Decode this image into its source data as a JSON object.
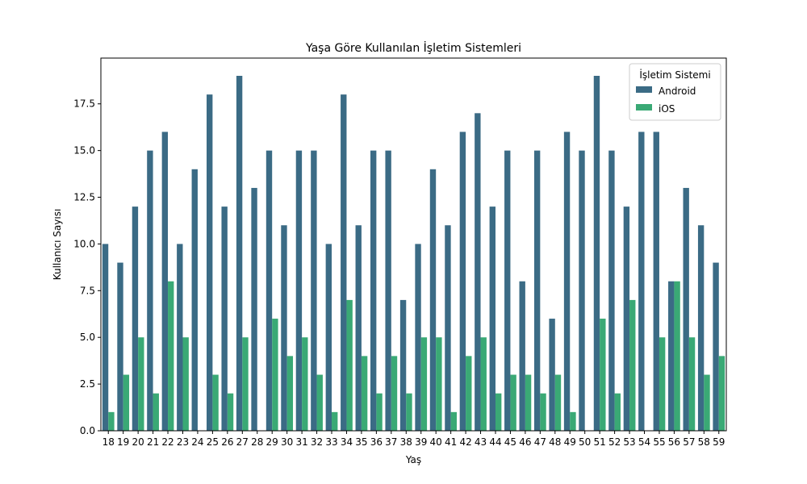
{
  "chart_data": {
    "type": "bar",
    "title": "Yaşa Göre Kullanılan İşletim Sistemleri",
    "xlabel": "Yaş",
    "ylabel": "Kullanıcı Sayısı",
    "ylim": [
      0,
      19.95
    ],
    "yticks": [
      "0.0",
      "2.5",
      "5.0",
      "7.5",
      "10.0",
      "12.5",
      "15.0",
      "17.5"
    ],
    "legend_title": "İşletim Sistemi",
    "legend_position": "upper right",
    "categories": [
      "18",
      "19",
      "20",
      "21",
      "22",
      "23",
      "24",
      "25",
      "26",
      "27",
      "28",
      "29",
      "30",
      "31",
      "32",
      "33",
      "34",
      "35",
      "36",
      "37",
      "38",
      "39",
      "40",
      "41",
      "42",
      "43",
      "44",
      "45",
      "46",
      "47",
      "48",
      "49",
      "50",
      "51",
      "52",
      "53",
      "54",
      "55",
      "56",
      "57",
      "58",
      "59"
    ],
    "series": [
      {
        "name": "Android",
        "color": "#3b6b85",
        "values": [
          10,
          9,
          12,
          15,
          16,
          10,
          14,
          18,
          12,
          19,
          13,
          15,
          11,
          15,
          15,
          10,
          18,
          11,
          15,
          15,
          7,
          10,
          14,
          11,
          16,
          17,
          12,
          15,
          8,
          15,
          6,
          16,
          15,
          19,
          15,
          12,
          16,
          16,
          8,
          13,
          11,
          9
        ]
      },
      {
        "name": "iOS",
        "color": "#3aa975",
        "values": [
          1,
          3,
          5,
          2,
          8,
          5,
          null,
          3,
          2,
          5,
          null,
          6,
          4,
          5,
          3,
          1,
          7,
          4,
          2,
          4,
          2,
          5,
          5,
          1,
          4,
          5,
          2,
          3,
          3,
          2,
          3,
          1,
          null,
          6,
          2,
          7,
          null,
          5,
          8,
          5,
          3,
          4
        ]
      }
    ]
  }
}
